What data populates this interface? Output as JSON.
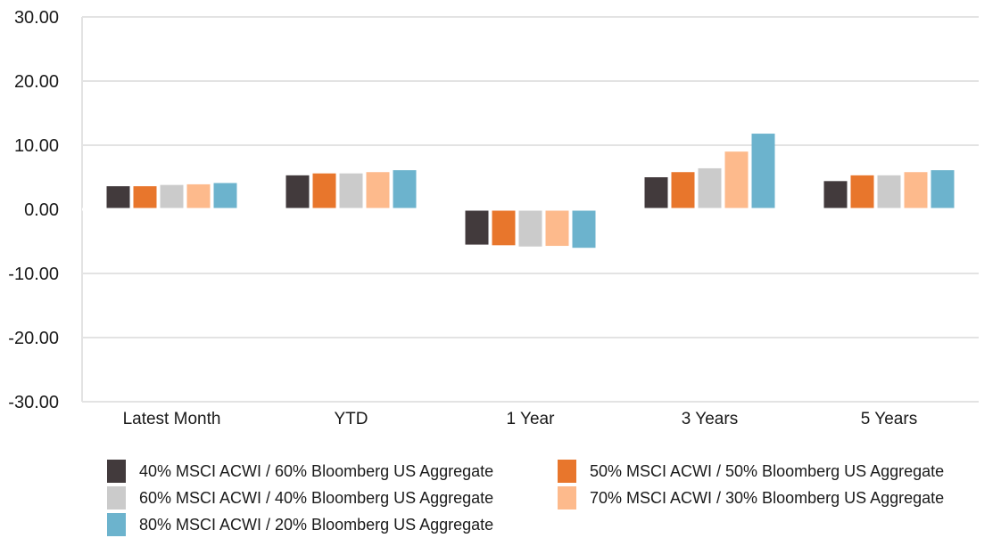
{
  "chart_data": {
    "type": "bar",
    "categories": [
      "Latest Month",
      "YTD",
      "1 Year",
      "3 Years",
      "5 Years"
    ],
    "series": [
      {
        "name": "40% MSCI ACWI / 60% Bloomberg US Aggregate",
        "color": "#423a3c",
        "values": [
          3.6,
          5.3,
          -5.5,
          5.0,
          4.4
        ]
      },
      {
        "name": "50% MSCI ACWI / 50% Bloomberg US Aggregate",
        "color": "#e8762c",
        "values": [
          3.6,
          5.6,
          -5.6,
          5.8,
          5.3
        ]
      },
      {
        "name": "60% MSCI ACWI / 40% Bloomberg US Aggregate",
        "color": "#cbcbcb",
        "values": [
          3.8,
          5.6,
          -5.8,
          6.4,
          5.3
        ]
      },
      {
        "name": "70% MSCI ACWI / 30% Bloomberg US Aggregate",
        "color": "#fdba8c",
        "values": [
          3.9,
          5.8,
          -5.7,
          9.0,
          5.8
        ]
      },
      {
        "name": "80% MSCI ACWI / 20% Bloomberg US Aggregate",
        "color": "#6cb3cd",
        "values": [
          4.1,
          6.1,
          -6.0,
          11.8,
          6.1
        ]
      }
    ],
    "ylim": [
      -30,
      30
    ],
    "yticks": [
      "30.00",
      "20.00",
      "10.00",
      "0.00",
      "-10.00",
      "-20.00",
      "-30.00"
    ],
    "ytick_values": [
      30,
      20,
      10,
      0,
      -10,
      -20,
      -30
    ],
    "grid": true,
    "legend_position": "bottom",
    "title": "",
    "xlabel": "",
    "ylabel": ""
  }
}
